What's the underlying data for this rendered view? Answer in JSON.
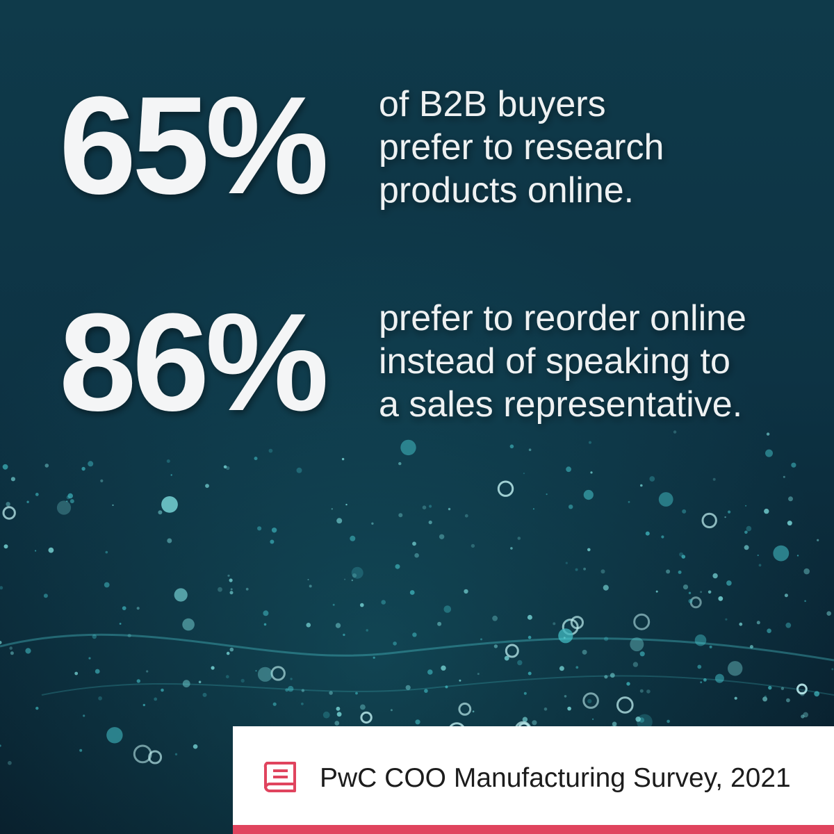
{
  "stats": [
    {
      "number": "65%",
      "lines": [
        "of B2B buyers",
        "prefer to research",
        "products online."
      ]
    },
    {
      "number": "86%",
      "lines": [
        "prefer to reorder online",
        "instead of speaking to",
        "a sales representative."
      ]
    }
  ],
  "source": "PwC COO Manufacturing Survey, 2021"
}
